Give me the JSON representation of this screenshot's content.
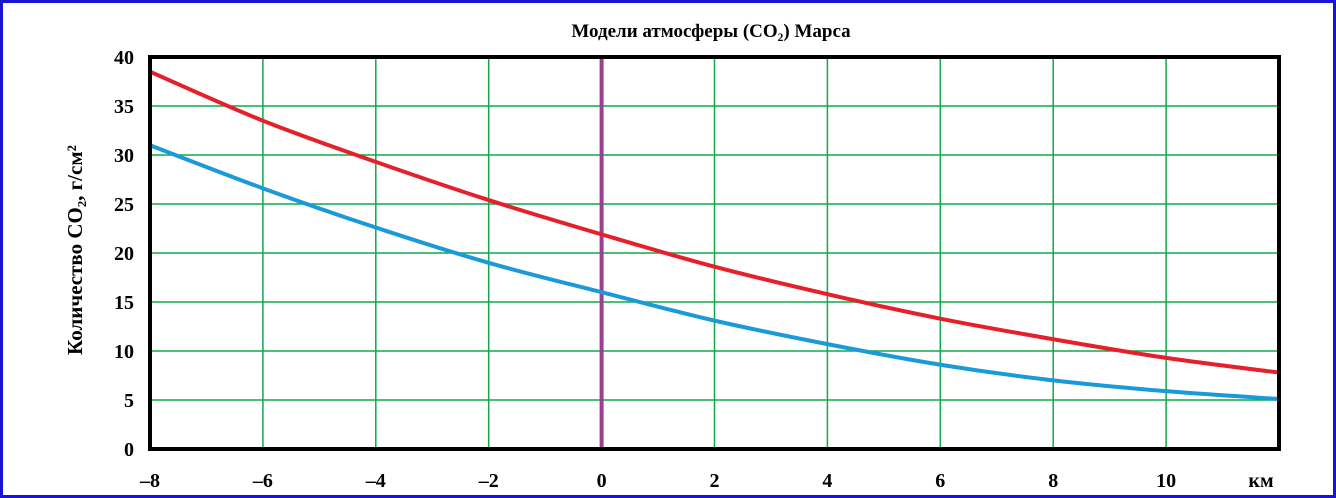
{
  "chart_data": {
    "type": "line",
    "title": "Модели атмосферы (CO₂) Марса",
    "ylabel": "Количество CO₂, г/см²",
    "xunit": "км",
    "xlim": [
      -8,
      12
    ],
    "ylim": [
      0,
      40
    ],
    "x_ticks": [
      -8,
      -6,
      -4,
      -2,
      0,
      2,
      4,
      6,
      8,
      10
    ],
    "x_tick_labels": [
      "–8",
      "–6",
      "–4",
      "–2",
      "0",
      "2",
      "4",
      "6",
      "8",
      "10"
    ],
    "y_ticks": [
      0,
      5,
      10,
      15,
      20,
      25,
      30,
      35,
      40
    ],
    "y_tick_labels": [
      "0",
      "5",
      "10",
      "15",
      "20",
      "25",
      "30",
      "35",
      "40"
    ],
    "grid": true,
    "reference_line_x": 0,
    "series": [
      {
        "color": "#e5202a",
        "x": [
          -8,
          -6,
          -4,
          -2,
          0,
          2,
          4,
          6,
          8,
          10,
          12
        ],
        "y": [
          38.5,
          33.5,
          29.3,
          25.4,
          21.9,
          18.6,
          15.8,
          13.3,
          11.2,
          9.3,
          7.8
        ]
      },
      {
        "color": "#1a9ad8",
        "x": [
          -8,
          -6,
          -4,
          -2,
          0,
          2,
          4,
          6,
          8,
          10,
          12
        ],
        "y": [
          31.0,
          26.6,
          22.6,
          19.0,
          16.0,
          13.1,
          10.7,
          8.6,
          7.0,
          5.9,
          5.1
        ]
      }
    ],
    "colors": {
      "frame": "#1a12d6",
      "grid": "#10a84a",
      "axes": "#000000",
      "reference_line": "#9b3f8e"
    }
  }
}
